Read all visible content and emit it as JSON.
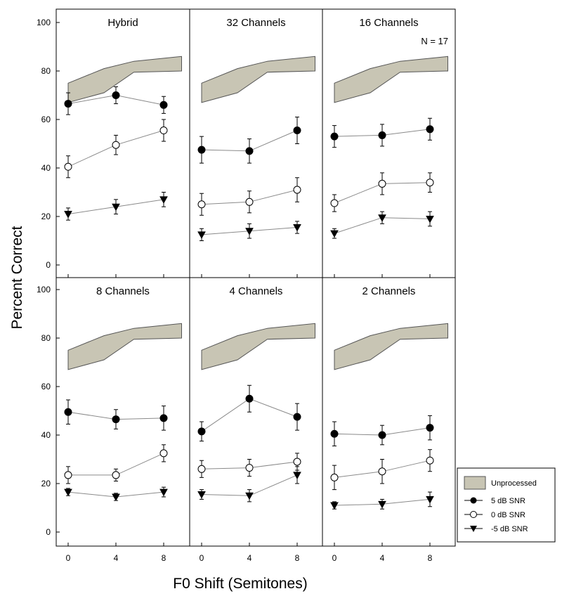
{
  "figure": {
    "ylabel": "Percent Correct",
    "xlabel": "F0 Shift (Semitones)",
    "n_label": "N = 17",
    "x_ticks": [
      "0",
      "4",
      "8"
    ],
    "y_ticks": [
      "0",
      "20",
      "40",
      "60",
      "80",
      "100"
    ]
  },
  "legend": {
    "entries": [
      {
        "label": "Unprocessed",
        "marker": "band"
      },
      {
        "label": "5 dB SNR",
        "marker": "filled-circle"
      },
      {
        "label": "0 dB SNR",
        "marker": "open-circle"
      },
      {
        "label": "-5 dB SNR",
        "marker": "filled-triangle-down"
      }
    ],
    "placement": "bottom-right"
  },
  "colors": {
    "band_fill": "#c8c5b4",
    "axis": "#000000",
    "line": "#8a8a8a"
  },
  "chart_data": [
    {
      "type": "line",
      "title": "Hybrid",
      "xlabel": "F0 Shift (Semitones)",
      "ylabel": "Percent Correct",
      "x": [
        0,
        4,
        8
      ],
      "xlim": [
        -0.6,
        9.6
      ],
      "ylim": [
        -4,
        104
      ],
      "band": {
        "x": [
          0,
          3,
          5.5,
          9.5
        ],
        "upper": [
          75,
          81,
          84,
          86
        ],
        "lower": [
          67,
          71,
          79.5,
          80
        ]
      },
      "series": [
        {
          "name": "5 dB SNR",
          "marker": "filled-circle",
          "values": [
            66.5,
            70,
            66
          ],
          "err": [
            4.5,
            3.5,
            3.5
          ]
        },
        {
          "name": "0 dB SNR",
          "marker": "open-circle",
          "values": [
            40.5,
            49.5,
            55.5
          ],
          "err": [
            4.5,
            4,
            4.5
          ]
        },
        {
          "name": "-5 dB SNR",
          "marker": "filled-triangle-down",
          "values": [
            21,
            24,
            27
          ],
          "err": [
            2.5,
            3,
            3
          ]
        }
      ]
    },
    {
      "type": "line",
      "title": "32 Channels",
      "xlabel": "F0 Shift (Semitones)",
      "ylabel": "Percent Correct",
      "x": [
        0,
        4,
        8
      ],
      "xlim": [
        -0.6,
        9.6
      ],
      "ylim": [
        -4,
        104
      ],
      "band": {
        "x": [
          0,
          3,
          5.5,
          9.5
        ],
        "upper": [
          75,
          81,
          84,
          86
        ],
        "lower": [
          67,
          71,
          79.5,
          80
        ]
      },
      "series": [
        {
          "name": "5 dB SNR",
          "marker": "filled-circle",
          "values": [
            47.5,
            47,
            55.5
          ],
          "err": [
            5.5,
            5,
            5.5
          ]
        },
        {
          "name": "0 dB SNR",
          "marker": "open-circle",
          "values": [
            25,
            26,
            31
          ],
          "err": [
            4.5,
            4.5,
            5
          ]
        },
        {
          "name": "-5 dB SNR",
          "marker": "filled-triangle-down",
          "values": [
            12.5,
            14,
            15.5
          ],
          "err": [
            2.5,
            3,
            2.5
          ]
        }
      ]
    },
    {
      "type": "line",
      "title": "16 Channels",
      "xlabel": "F0 Shift (Semitones)",
      "ylabel": "Percent Correct",
      "x": [
        0,
        4,
        8
      ],
      "xlim": [
        -0.6,
        9.6
      ],
      "ylim": [
        -4,
        104
      ],
      "band": {
        "x": [
          0,
          3,
          5.5,
          9.5
        ],
        "upper": [
          75,
          81,
          84,
          86
        ],
        "lower": [
          67,
          71,
          79.5,
          80
        ]
      },
      "series": [
        {
          "name": "5 dB SNR",
          "marker": "filled-circle",
          "values": [
            53,
            53.5,
            56
          ],
          "err": [
            4.5,
            4.5,
            4.5
          ]
        },
        {
          "name": "0 dB SNR",
          "marker": "open-circle",
          "values": [
            25.5,
            33.5,
            34
          ],
          "err": [
            3.5,
            4.5,
            4
          ]
        },
        {
          "name": "-5 dB SNR",
          "marker": "filled-triangle-down",
          "values": [
            13,
            19.5,
            19
          ],
          "err": [
            2,
            2.5,
            3
          ]
        }
      ]
    },
    {
      "type": "line",
      "title": "8 Channels",
      "xlabel": "F0 Shift (Semitones)",
      "ylabel": "Percent Correct",
      "x": [
        0,
        4,
        8
      ],
      "xlim": [
        -0.6,
        9.6
      ],
      "ylim": [
        -4,
        104
      ],
      "band": {
        "x": [
          0,
          3,
          5.5,
          9.5
        ],
        "upper": [
          75,
          81,
          84,
          86
        ],
        "lower": [
          67,
          71,
          79.5,
          80
        ]
      },
      "series": [
        {
          "name": "5 dB SNR",
          "marker": "filled-circle",
          "values": [
            49.5,
            46.5,
            47
          ],
          "err": [
            5,
            4,
            5
          ]
        },
        {
          "name": "0 dB SNR",
          "marker": "open-circle",
          "values": [
            23.5,
            23.5,
            32.5
          ],
          "err": [
            3.5,
            2.5,
            3.5
          ]
        },
        {
          "name": "-5 dB SNR",
          "marker": "filled-triangle-down",
          "values": [
            16.5,
            14.5,
            16.5
          ],
          "err": [
            1.5,
            1.5,
            2
          ]
        }
      ]
    },
    {
      "type": "line",
      "title": "4 Channels",
      "xlabel": "F0 Shift (Semitones)",
      "ylabel": "Percent Correct",
      "x": [
        0,
        4,
        8
      ],
      "xlim": [
        -0.6,
        9.6
      ],
      "ylim": [
        -4,
        104
      ],
      "band": {
        "x": [
          0,
          3,
          5.5,
          9.5
        ],
        "upper": [
          75,
          81,
          84,
          86
        ],
        "lower": [
          67,
          71,
          79.5,
          80
        ]
      },
      "series": [
        {
          "name": "5 dB SNR",
          "marker": "filled-circle",
          "values": [
            41.5,
            55,
            47.5
          ],
          "err": [
            4,
            5.5,
            5.5
          ]
        },
        {
          "name": "0 dB SNR",
          "marker": "open-circle",
          "values": [
            26,
            26.5,
            29
          ],
          "err": [
            3.5,
            3.5,
            3.5
          ]
        },
        {
          "name": "-5 dB SNR",
          "marker": "filled-triangle-down",
          "values": [
            15.5,
            15,
            23.5
          ],
          "err": [
            2,
            2.5,
            3.5
          ]
        }
      ]
    },
    {
      "type": "line",
      "title": "2 Channels",
      "xlabel": "F0 Shift (Semitones)",
      "ylabel": "Percent Correct",
      "x": [
        0,
        4,
        8
      ],
      "xlim": [
        -0.6,
        9.6
      ],
      "ylim": [
        -4,
        104
      ],
      "band": {
        "x": [
          0,
          3,
          5.5,
          9.5
        ],
        "upper": [
          75,
          81,
          84,
          86
        ],
        "lower": [
          67,
          71,
          79.5,
          80
        ]
      },
      "series": [
        {
          "name": "5 dB SNR",
          "marker": "filled-circle",
          "values": [
            40.5,
            40,
            43
          ],
          "err": [
            5,
            4,
            5
          ]
        },
        {
          "name": "0 dB SNR",
          "marker": "open-circle",
          "values": [
            22.5,
            25,
            29.5
          ],
          "err": [
            5,
            5,
            4.5
          ]
        },
        {
          "name": "-5 dB SNR",
          "marker": "filled-triangle-down",
          "values": [
            11,
            11.5,
            13.5
          ],
          "err": [
            1.5,
            2,
            3
          ]
        }
      ]
    }
  ]
}
